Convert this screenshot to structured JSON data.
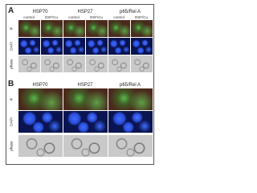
{
  "panels": [
    {
      "label": "A",
      "columns": [
        {
          "title": "HSP70",
          "conditions": [
            "control",
            "DSF/Cu"
          ]
        },
        {
          "title": "HSP27",
          "conditions": [
            "control",
            "DSF/Cu"
          ]
        },
        {
          "title": "p65/Rel A",
          "conditions": [
            "control",
            "DSF/Cu"
          ]
        }
      ],
      "rows": [
        "IF",
        "DAPI",
        "phase"
      ]
    },
    {
      "label": "B",
      "columns": [
        {
          "title": "HSP70"
        },
        {
          "title": "HSP27"
        },
        {
          "title": "p65/Rel A"
        }
      ],
      "rows": [
        "IF",
        "DAPI",
        "phase"
      ]
    }
  ]
}
